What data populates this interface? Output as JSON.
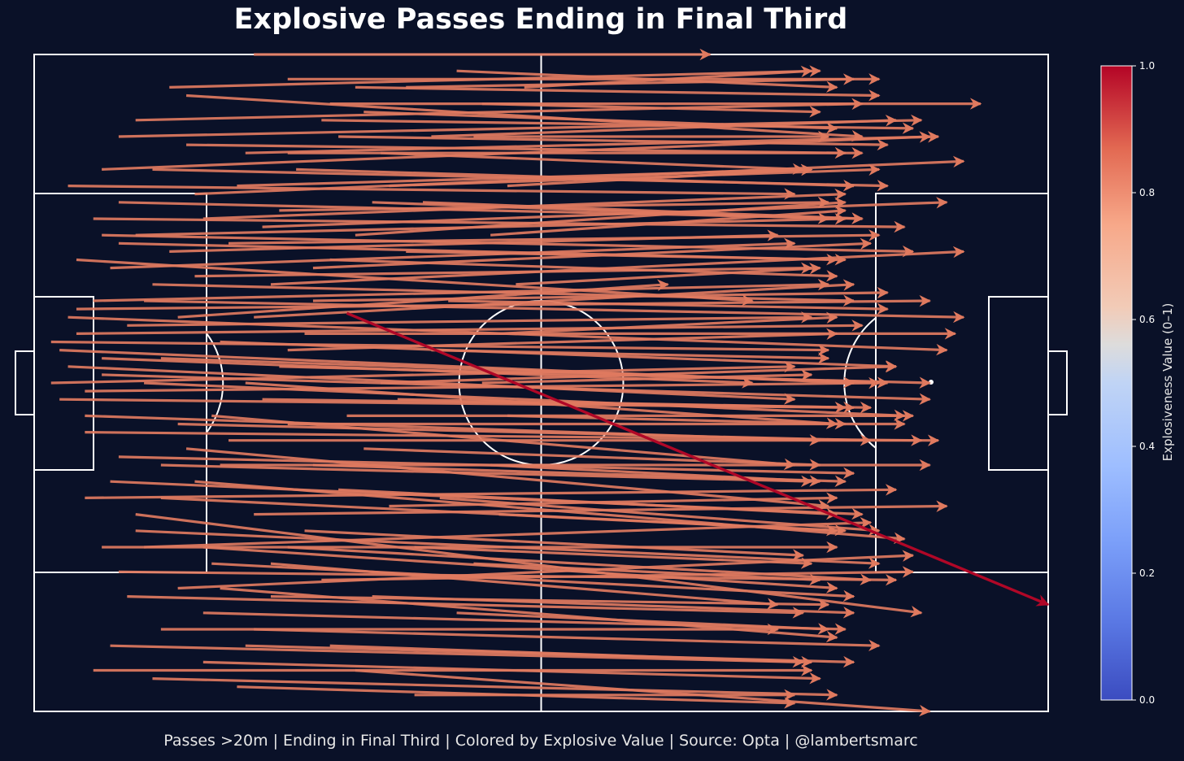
{
  "chart_data": {
    "type": "quiver",
    "title": "Explosive Passes Ending in Final Third",
    "footer": "Passes >20m | Ending in Final Third | Colored by Explosive Value | Source: Opta | @lambertsmarc",
    "pitch": {
      "length": 120,
      "width": 80,
      "line_color": "#ffffff",
      "background": "#0a1128"
    },
    "colorbar": {
      "label": "Explosiveness Value (0–1)",
      "range": [
        0,
        1
      ],
      "ticks": [
        "0.0",
        "0.2",
        "0.4",
        "0.6",
        "0.8",
        "1.0"
      ],
      "colormap": "coolwarm",
      "color_low": "#3b4cc0",
      "color_mid": "#dddddd",
      "color_high": "#b40426"
    },
    "typical_pass_value": 0.81,
    "highlight_pass": {
      "x_start": 37,
      "y_start": 48.5,
      "x_end": 120,
      "y_end": 13,
      "value": 1.0
    },
    "passes": [
      [
        26,
        80,
        80,
        80
      ],
      [
        30,
        77,
        100,
        77
      ],
      [
        10,
        70,
        105,
        72
      ],
      [
        5,
        55,
        85,
        50
      ],
      [
        18,
        75,
        98,
        70
      ],
      [
        40,
        62,
        94,
        60
      ],
      [
        4,
        64,
        90,
        63
      ],
      [
        13,
        50,
        110,
        48
      ],
      [
        8,
        43,
        85,
        40
      ],
      [
        15,
        30,
        92,
        28
      ],
      [
        6,
        39,
        100,
        40
      ],
      [
        2,
        40,
        90,
        42
      ],
      [
        12,
        24,
        105,
        12
      ],
      [
        20,
        20,
        95,
        15
      ],
      [
        7,
        5,
        92,
        5
      ],
      [
        38,
        5,
        106,
        0
      ],
      [
        45,
        2,
        90,
        2
      ],
      [
        30,
        35,
        103,
        35
      ],
      [
        22,
        45,
        102,
        42
      ],
      [
        4,
        48,
        108,
        44
      ],
      [
        17,
        48,
        75,
        52
      ],
      [
        10,
        57,
        95,
        55
      ],
      [
        25,
        68,
        107,
        70
      ],
      [
        35,
        74,
        112,
        74
      ],
      [
        18,
        69,
        96,
        68
      ],
      [
        6,
        34,
        105,
        33
      ],
      [
        10,
        17,
        102,
        16
      ],
      [
        20,
        12,
        96,
        10
      ],
      [
        28,
        18,
        88,
        13
      ],
      [
        42,
        25,
        95,
        26
      ],
      [
        3,
        44,
        97,
        40
      ],
      [
        8,
        41,
        106,
        38
      ],
      [
        11,
        47,
        92,
        48
      ],
      [
        14,
        52,
        97,
        50
      ],
      [
        16,
        56,
        88,
        58
      ],
      [
        20,
        60,
        96,
        63
      ],
      [
        24,
        64,
        92,
        66
      ],
      [
        30,
        68,
        98,
        68
      ],
      [
        34,
        72,
        104,
        71
      ],
      [
        38,
        76,
        100,
        75
      ],
      [
        28,
        52,
        110,
        56
      ],
      [
        32,
        46,
        109,
        46
      ],
      [
        25,
        40,
        95,
        35
      ],
      [
        21,
        36,
        90,
        30
      ],
      [
        18,
        32,
        94,
        25
      ],
      [
        15,
        26,
        96,
        22
      ],
      [
        12,
        22,
        100,
        18
      ],
      [
        9,
        28,
        98,
        24
      ],
      [
        6,
        36,
        93,
        33
      ],
      [
        4,
        42,
        90,
        38
      ],
      [
        5,
        46,
        98,
        47
      ],
      [
        7,
        50,
        94,
        52
      ],
      [
        9,
        54,
        90,
        57
      ],
      [
        12,
        58,
        96,
        60
      ],
      [
        22,
        15,
        95,
        9
      ],
      [
        26,
        10,
        100,
        8
      ],
      [
        35,
        8,
        92,
        6
      ],
      [
        40,
        14,
        97,
        12
      ],
      [
        45,
        20,
        92,
        18
      ],
      [
        48,
        26,
        100,
        22
      ],
      [
        33,
        30,
        96,
        28
      ],
      [
        37,
        36,
        104,
        36
      ],
      [
        41,
        40,
        102,
        42
      ],
      [
        30,
        44,
        95,
        46
      ],
      [
        26,
        48,
        97,
        52
      ],
      [
        33,
        54,
        99,
        57
      ],
      [
        38,
        58,
        96,
        62
      ],
      [
        42,
        64,
        100,
        66
      ],
      [
        47,
        70,
        102,
        72
      ],
      [
        50,
        78,
        95,
        76
      ],
      [
        53,
        74,
        93,
        73
      ],
      [
        27,
        59,
        108,
        62
      ],
      [
        19,
        63,
        110,
        67
      ],
      [
        14,
        66,
        101,
        64
      ],
      [
        10,
        62,
        98,
        60
      ],
      [
        8,
        58,
        104,
        56
      ],
      [
        13,
        40,
        103,
        36
      ],
      [
        17,
        35,
        99,
        33
      ],
      [
        22,
        30,
        106,
        30
      ],
      [
        26,
        24,
        108,
        25
      ],
      [
        30,
        20,
        99,
        16
      ],
      [
        34,
        16,
        104,
        17
      ],
      [
        20,
        6,
        93,
        4
      ],
      [
        24,
        3,
        90,
        1
      ],
      [
        15,
        10,
        88,
        10
      ],
      [
        11,
        14,
        91,
        12
      ],
      [
        8,
        20,
        95,
        20
      ],
      [
        6,
        26,
        102,
        27
      ],
      [
        10,
        31,
        97,
        29
      ],
      [
        3,
        38,
        96,
        37
      ],
      [
        2,
        45,
        94,
        44
      ],
      [
        5,
        49,
        106,
        50
      ],
      [
        15,
        43,
        101,
        40
      ],
      [
        19,
        53,
        92,
        54
      ],
      [
        23,
        57,
        100,
        58
      ],
      [
        29,
        61,
        94,
        62
      ],
      [
        31,
        66,
        97,
        64
      ],
      [
        36,
        70,
        101,
        69
      ],
      [
        39,
        73,
        95,
        71
      ],
      [
        44,
        76,
        97,
        77
      ],
      [
        41,
        68,
        91,
        66
      ],
      [
        46,
        62,
        98,
        60
      ],
      [
        44,
        56,
        96,
        55
      ],
      [
        49,
        50,
        101,
        49
      ],
      [
        47,
        44,
        94,
        43
      ],
      [
        43,
        38,
        97,
        37
      ],
      [
        39,
        32,
        93,
        30
      ],
      [
        36,
        27,
        95,
        24
      ],
      [
        32,
        22,
        91,
        19
      ],
      [
        28,
        14,
        94,
        13
      ],
      [
        25,
        8,
        97,
        6
      ],
      [
        50,
        12,
        94,
        10
      ],
      [
        52,
        18,
        93,
        16
      ],
      [
        55,
        24,
        95,
        22
      ],
      [
        54,
        30,
        93,
        28
      ],
      [
        56,
        36,
        96,
        35
      ],
      [
        53,
        40,
        92,
        41
      ],
      [
        55,
        46,
        95,
        48
      ],
      [
        57,
        52,
        93,
        54
      ],
      [
        54,
        58,
        96,
        61
      ],
      [
        56,
        64,
        92,
        66
      ],
      [
        52,
        70,
        94,
        70
      ],
      [
        58,
        76,
        92,
        78
      ],
      [
        8,
        66,
        106,
        70
      ],
      [
        12,
        72,
        98,
        74
      ],
      [
        16,
        76,
        93,
        78
      ],
      [
        7,
        60,
        103,
        59
      ],
      [
        9,
        8,
        91,
        6
      ],
      [
        14,
        4,
        95,
        2
      ],
      [
        19,
        28,
        103,
        21
      ],
      [
        23,
        33,
        107,
        33
      ],
      [
        27,
        38,
        99,
        37
      ],
      [
        29,
        42,
        106,
        40
      ],
      [
        33,
        50,
        101,
        51
      ],
      [
        35,
        55,
        95,
        53
      ],
      [
        21,
        18,
        97,
        14
      ],
      [
        17,
        15,
        104,
        19
      ],
      [
        13,
        20,
        99,
        23
      ]
    ]
  }
}
